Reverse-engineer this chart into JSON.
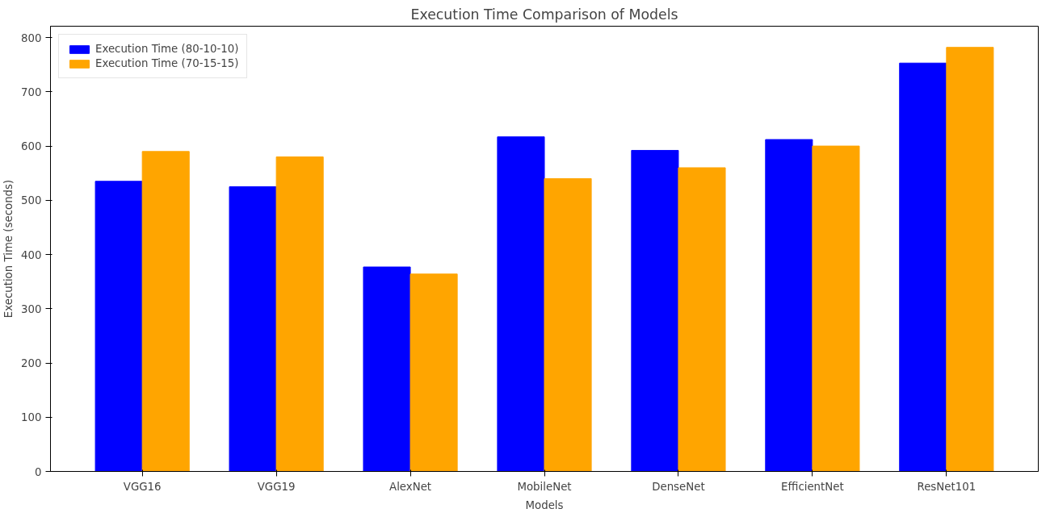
{
  "chart_data": {
    "type": "bar",
    "title": "Execution Time Comparison of Models",
    "xlabel": "Models",
    "ylabel": "Execution Time (seconds)",
    "categories": [
      "VGG16",
      "VGG19",
      "AlexNet",
      "MobileNet",
      "DenseNet",
      "EfficientNet",
      "ResNet101"
    ],
    "series": [
      {
        "name": "Execution Time (80-10-10)",
        "color": "#0000ff",
        "values": [
          535,
          525,
          377,
          617,
          592,
          612,
          753
        ]
      },
      {
        "name": "Execution Time (70-15-15)",
        "color": "#ffa500",
        "values": [
          590,
          580,
          364,
          540,
          560,
          600,
          782
        ]
      }
    ],
    "ylim": [
      0,
      821
    ],
    "yticks": [
      0,
      100,
      200,
      300,
      400,
      500,
      600,
      700,
      800
    ],
    "grid": false,
    "legend": "top left"
  }
}
